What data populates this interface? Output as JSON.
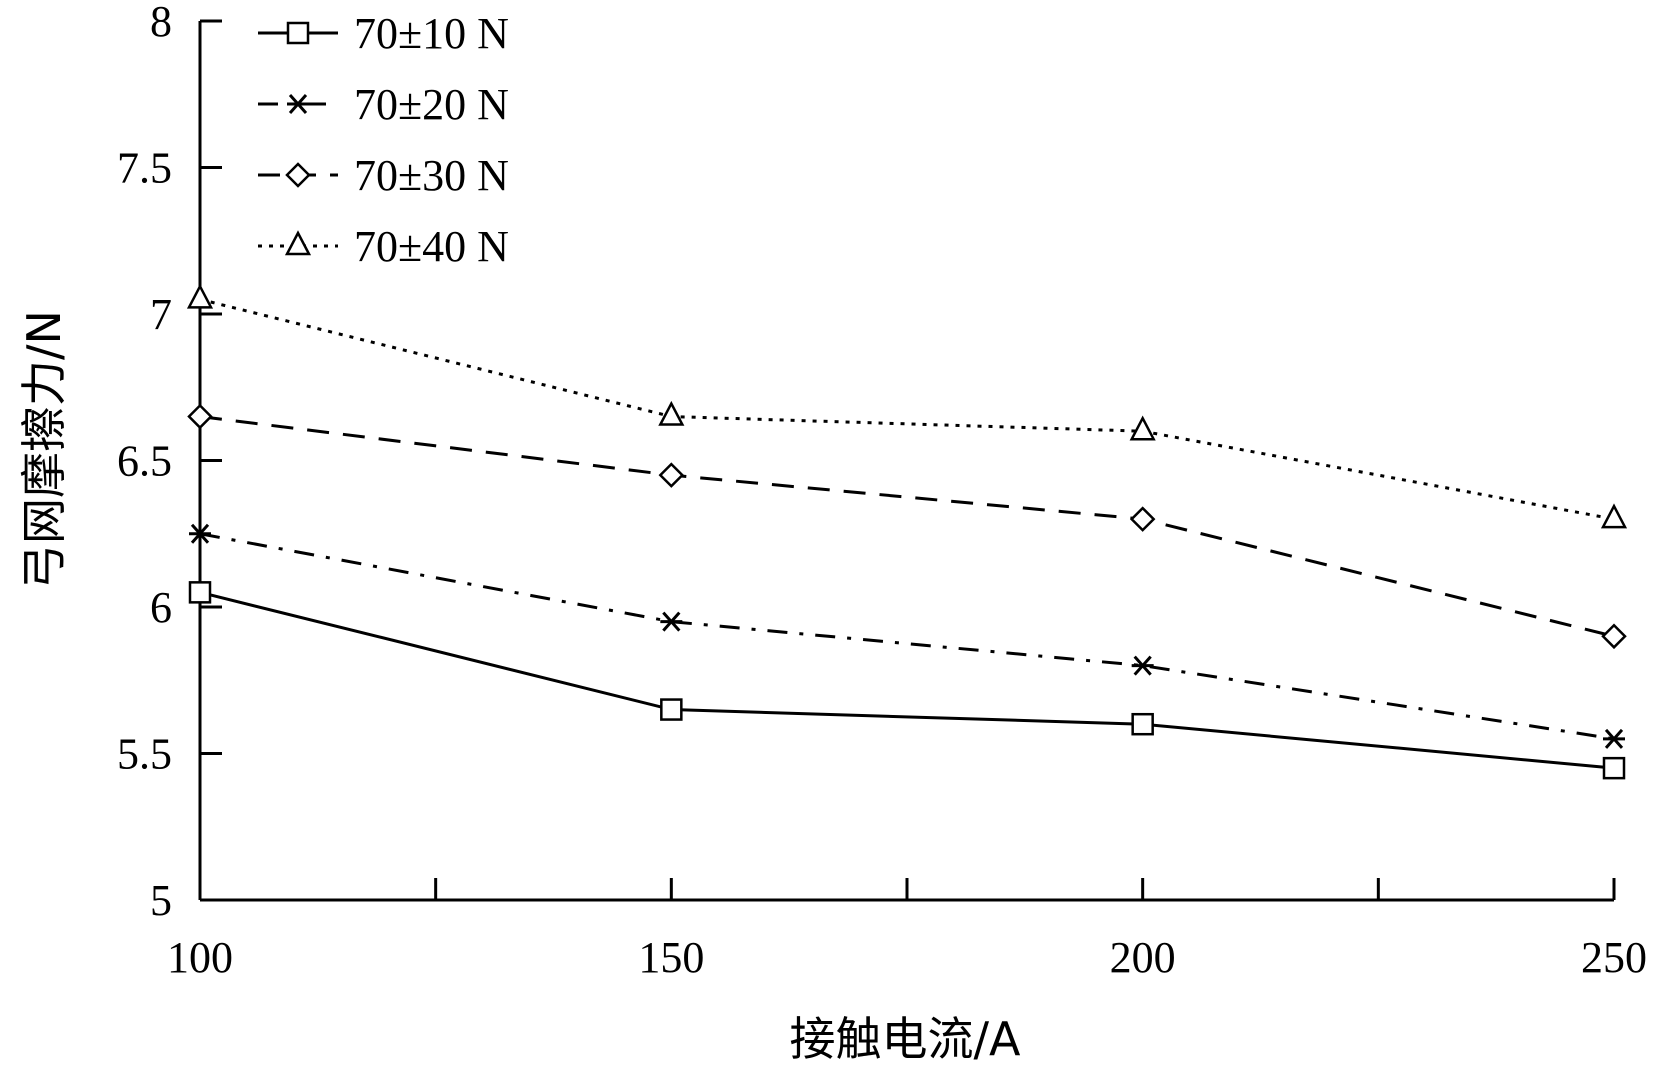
{
  "chart_data": {
    "type": "line",
    "title": "",
    "xlabel": "接触电流/A",
    "ylabel": "弓网摩擦力/N",
    "x": [
      100,
      150,
      200,
      250
    ],
    "xlim": [
      100,
      250
    ],
    "ylim": [
      5,
      8
    ],
    "xticks": [
      "100",
      "150",
      "200",
      "250"
    ],
    "yticks": [
      "5",
      "5.5",
      "6",
      "6.5",
      "7",
      "7.5",
      "8"
    ],
    "grid": false,
    "legend_position": "top-left",
    "series": [
      {
        "name": "70±10 N",
        "marker": "square",
        "line_style": "solid",
        "values": [
          6.05,
          5.65,
          5.6,
          5.45
        ]
      },
      {
        "name": "70±20 N",
        "marker": "asterisk",
        "line_style": "dash-dot",
        "values": [
          6.25,
          5.95,
          5.8,
          5.55
        ]
      },
      {
        "name": "70±30 N",
        "marker": "diamond",
        "line_style": "dashed",
        "values": [
          6.65,
          6.45,
          6.3,
          5.9
        ]
      },
      {
        "name": "70±40 N",
        "marker": "triangle",
        "line_style": "dotted",
        "values": [
          7.05,
          6.65,
          6.6,
          6.3
        ]
      }
    ]
  }
}
